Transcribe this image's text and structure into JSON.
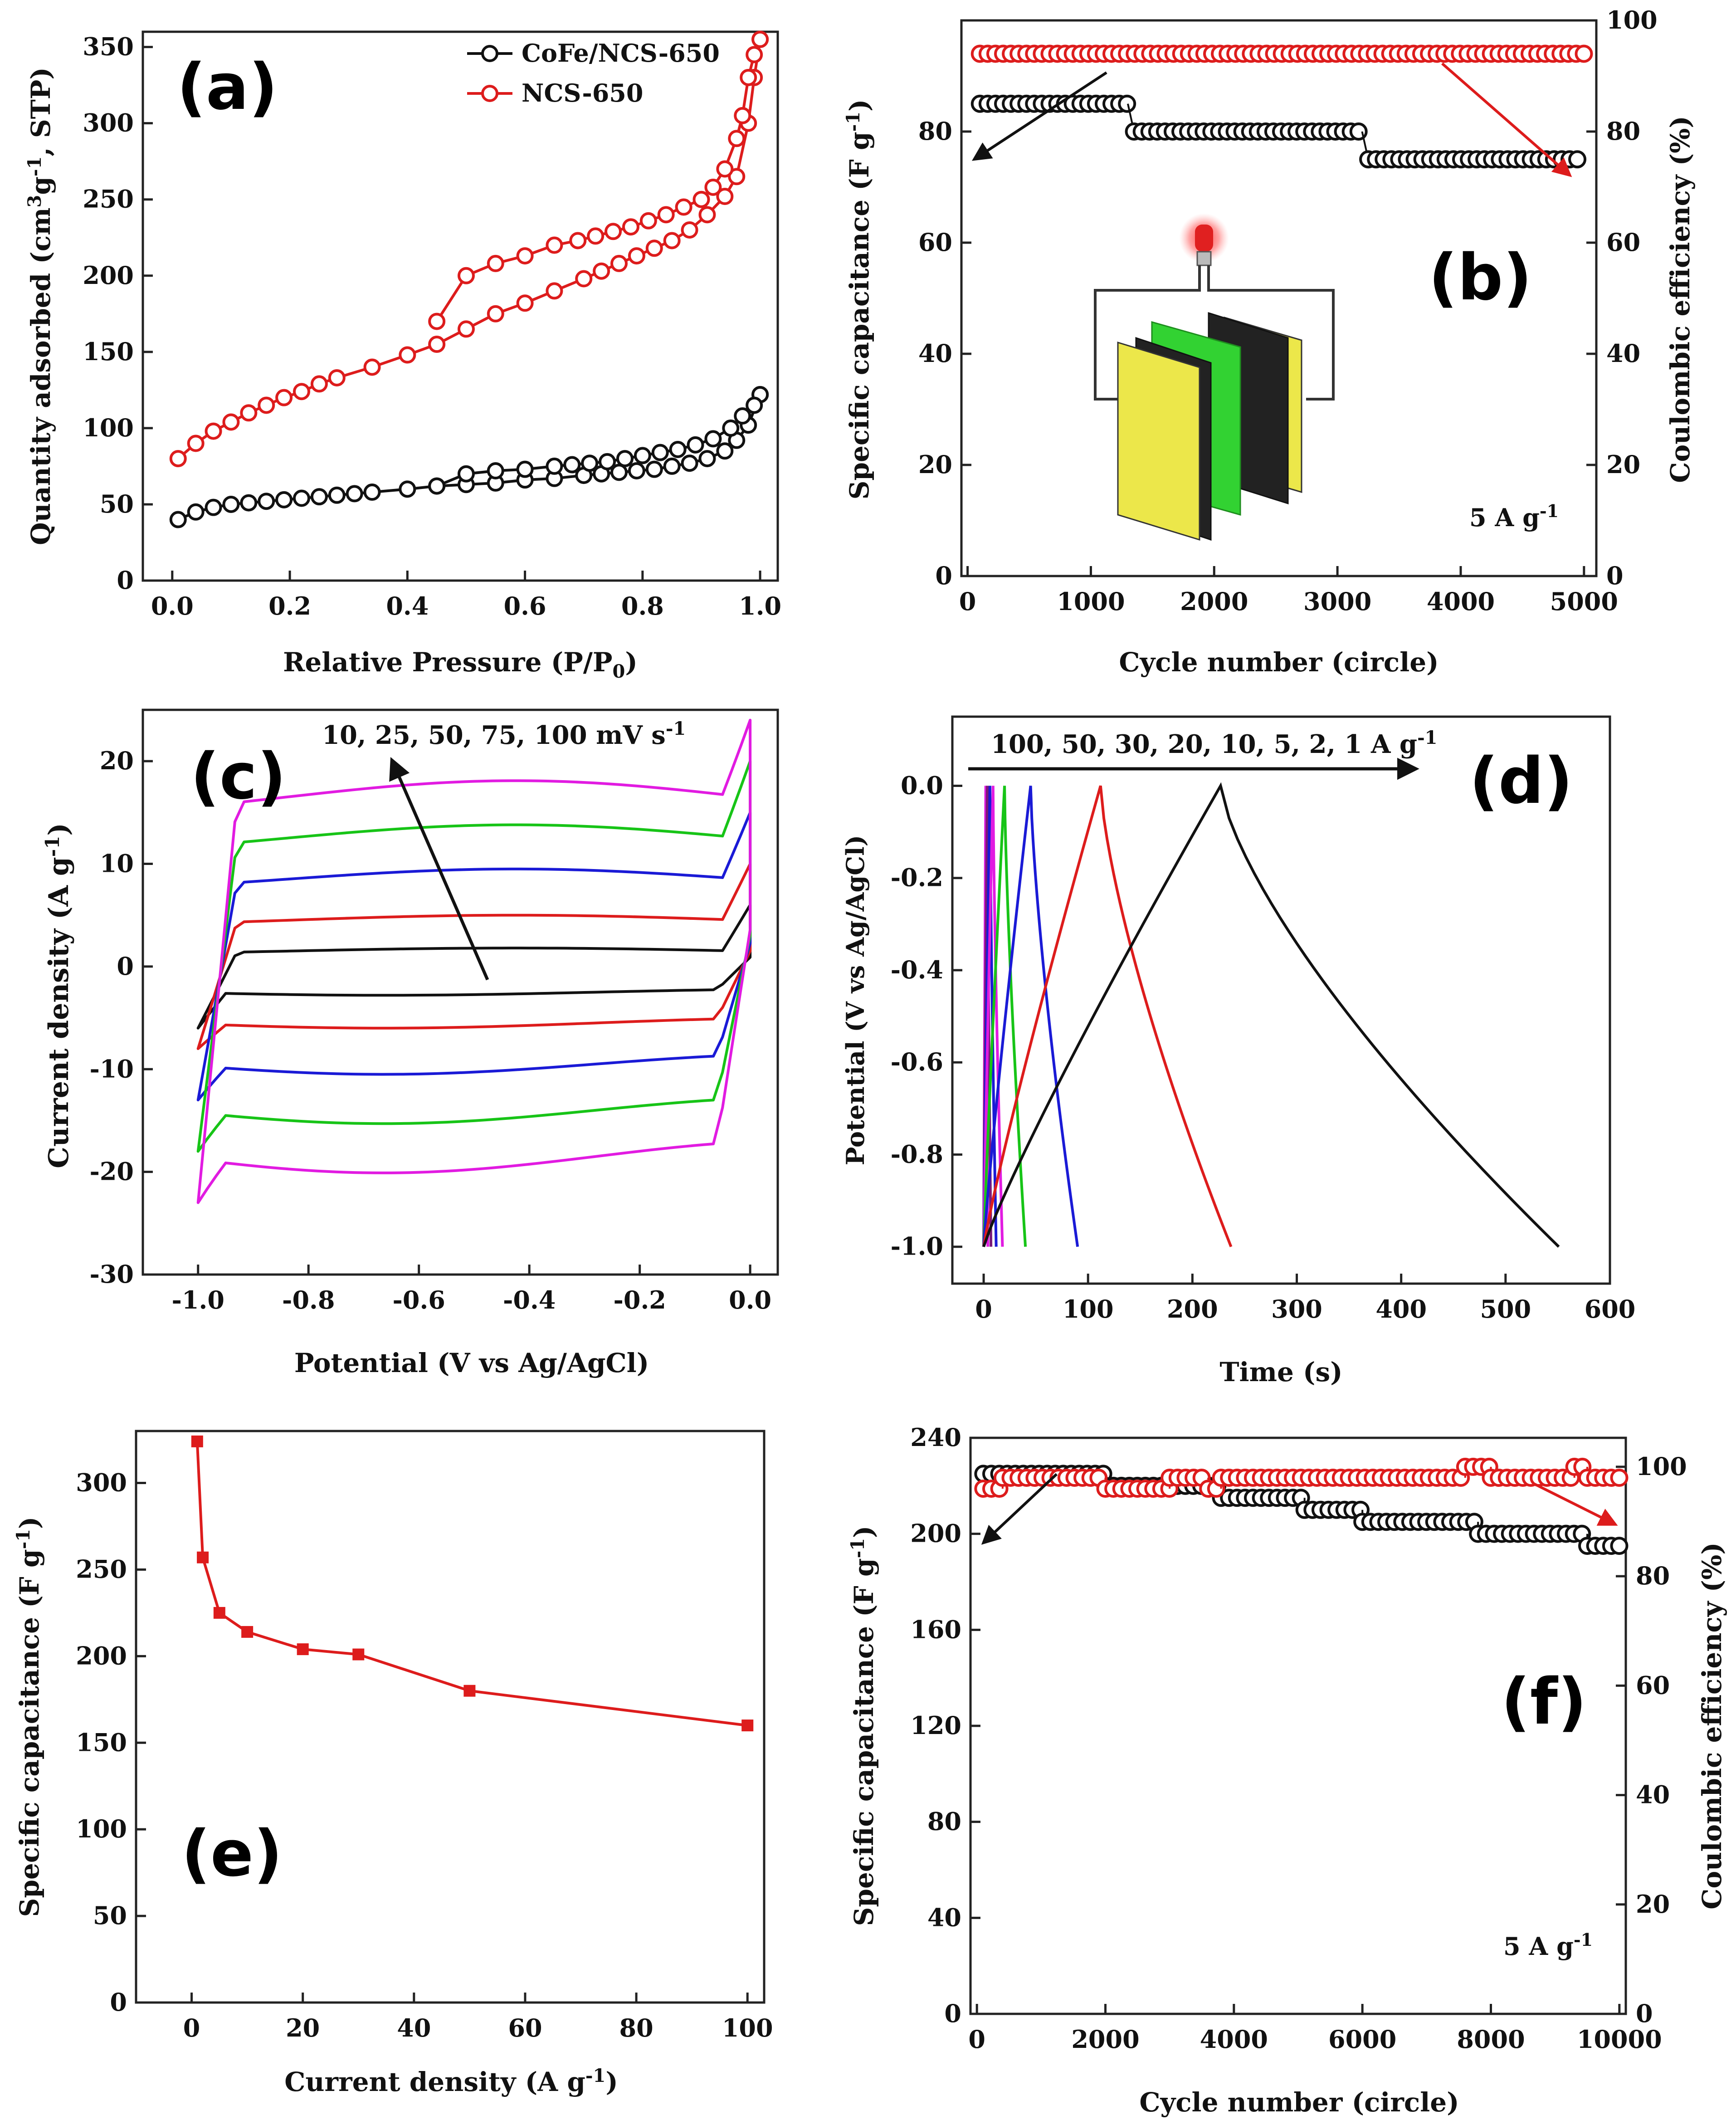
{
  "figure": {
    "panels": [
      "(a)",
      "(b)",
      "(c)",
      "(d)",
      "(e)",
      "(f)"
    ]
  },
  "chart_data": [
    {
      "id": "a",
      "letter": "(a)",
      "type": "line",
      "title": "",
      "xlabel": "Relative Pressure (P/P0)",
      "ylabel": "Quantity adsorbed (cm3g-1, STP)",
      "xlim": [
        -0.05,
        1.03
      ],
      "ylim": [
        0,
        360
      ],
      "xticks": [
        0.0,
        0.2,
        0.4,
        0.6,
        0.8,
        1.0
      ],
      "xtick_labels": [
        "0.0",
        "0.2",
        "0.4",
        "0.6",
        "0.8",
        "1.0"
      ],
      "yticks": [
        0,
        50,
        100,
        150,
        200,
        250,
        300,
        350
      ],
      "ytick_labels": [
        "0",
        "50",
        "100",
        "150",
        "200",
        "250",
        "300",
        "350"
      ],
      "legend": [
        {
          "name": "CoFe/NCS-650",
          "color": "#111111"
        },
        {
          "name": "NCS-650",
          "color": "#dd1c1c"
        }
      ],
      "series": [
        {
          "name": "CoFe/NCS-650 adsorption",
          "color": "#111111",
          "marker": "circle",
          "x": [
            0.01,
            0.04,
            0.07,
            0.1,
            0.13,
            0.16,
            0.19,
            0.22,
            0.25,
            0.28,
            0.31,
            0.34,
            0.4,
            0.45,
            0.5,
            0.55,
            0.6,
            0.65,
            0.7,
            0.73,
            0.76,
            0.79,
            0.82,
            0.85,
            0.88,
            0.91,
            0.94,
            0.96,
            0.98,
            1.0
          ],
          "y": [
            40,
            45,
            48,
            50,
            51,
            52,
            53,
            54,
            55,
            56,
            57,
            58,
            60,
            62,
            63,
            64,
            66,
            67,
            69,
            70,
            71,
            72,
            73,
            75,
            77,
            80,
            85,
            92,
            102,
            122
          ]
        },
        {
          "name": "CoFe/NCS-650 desorption",
          "color": "#111111",
          "marker": "circle",
          "x": [
            1.0,
            0.99,
            0.97,
            0.95,
            0.92,
            0.89,
            0.86,
            0.83,
            0.8,
            0.77,
            0.74,
            0.71,
            0.68,
            0.65,
            0.6,
            0.55,
            0.5,
            0.45
          ],
          "y": [
            122,
            115,
            108,
            100,
            93,
            89,
            86,
            84,
            82,
            80,
            78,
            77,
            76,
            75,
            73,
            72,
            70,
            62
          ]
        },
        {
          "name": "NCS-650 adsorption",
          "color": "#dd1c1c",
          "marker": "circle",
          "x": [
            0.01,
            0.04,
            0.07,
            0.1,
            0.13,
            0.16,
            0.19,
            0.22,
            0.25,
            0.28,
            0.34,
            0.4,
            0.45,
            0.5,
            0.55,
            0.6,
            0.65,
            0.7,
            0.73,
            0.76,
            0.79,
            0.82,
            0.85,
            0.88,
            0.91,
            0.94,
            0.96,
            0.98,
            0.99,
            1.0
          ],
          "y": [
            80,
            90,
            98,
            104,
            110,
            115,
            120,
            124,
            129,
            133,
            140,
            148,
            155,
            165,
            175,
            182,
            190,
            198,
            203,
            208,
            213,
            218,
            223,
            230,
            240,
            252,
            265,
            300,
            330,
            355
          ]
        },
        {
          "name": "NCS-650 desorption",
          "color": "#dd1c1c",
          "marker": "circle",
          "x": [
            1.0,
            0.99,
            0.98,
            0.97,
            0.96,
            0.94,
            0.92,
            0.9,
            0.87,
            0.84,
            0.81,
            0.78,
            0.75,
            0.72,
            0.69,
            0.65,
            0.6,
            0.55,
            0.5,
            0.45
          ],
          "y": [
            355,
            345,
            330,
            305,
            290,
            270,
            258,
            250,
            245,
            240,
            236,
            232,
            229,
            226,
            223,
            220,
            213,
            208,
            200,
            170
          ]
        }
      ]
    },
    {
      "id": "b",
      "letter": "(b)",
      "type": "scatter",
      "title": "",
      "xlabel": "Cycle number (circle)",
      "ylabel": "Specific capacitance (F g-1)",
      "ylabel2": "Coulombic efficiency (%)",
      "xlim": [
        -50,
        5100
      ],
      "ylim": [
        0,
        100
      ],
      "ylim2": [
        0,
        100
      ],
      "xticks": [
        0,
        1000,
        2000,
        3000,
        4000,
        5000
      ],
      "xtick_labels": [
        "0",
        "1000",
        "2000",
        "3000",
        "4000",
        "5000"
      ],
      "yticks": [
        0,
        20,
        40,
        60,
        80
      ],
      "ytick_labels": [
        "0",
        "20",
        "40",
        "60",
        "80"
      ],
      "yticks2": [
        0,
        20,
        40,
        60,
        80,
        100
      ],
      "ytick2_labels": [
        "0",
        "20",
        "40",
        "60",
        "80",
        "100"
      ],
      "annotation": "5 A g-1",
      "series": [
        {
          "name": "Specific capacitance",
          "color": "#111111",
          "axis": "left",
          "segments": [
            [
              100,
              1300,
              85
            ],
            [
              1350,
              3200,
              80
            ],
            [
              3250,
              5000,
              75
            ]
          ]
        },
        {
          "name": "Coulombic efficiency",
          "color": "#dd1c1c",
          "axis": "right",
          "segments": [
            [
              100,
              5000,
              94
            ]
          ]
        }
      ]
    },
    {
      "id": "c",
      "letter": "(c)",
      "type": "line",
      "title": "",
      "xlabel": "Potential (V vs Ag/AgCl)",
      "ylabel": "Current density (A g-1)",
      "xlim": [
        -1.1,
        0.05
      ],
      "ylim": [
        -30,
        25
      ],
      "xticks": [
        -1.0,
        -0.8,
        -0.6,
        -0.4,
        -0.2,
        0.0
      ],
      "xtick_labels": [
        "-1.0",
        "-0.8",
        "-0.6",
        "-0.4",
        "-0.2",
        "0.0"
      ],
      "yticks": [
        -30,
        -20,
        -10,
        0,
        10,
        20
      ],
      "ytick_labels": [
        "-30",
        "-20",
        "-10",
        "0",
        "10",
        "20"
      ],
      "annotation": "10, 25, 50, 75, 100 mV s-1",
      "series": [
        {
          "name": "10 mV s-1",
          "color": "#111111",
          "upper": 1.5,
          "lower": -2.5,
          "bump": 0.3,
          "ends": [
            -6,
            6
          ]
        },
        {
          "name": "25 mV s-1",
          "color": "#dd1c1c",
          "upper": 4.5,
          "lower": -5.5,
          "bump": 0.5,
          "ends": [
            -8,
            10
          ]
        },
        {
          "name": "50 mV s-1",
          "color": "#1a1ad6",
          "upper": 8.5,
          "lower": -9.5,
          "bump": 1.0,
          "ends": [
            -13,
            15
          ]
        },
        {
          "name": "75 mV s-1",
          "color": "#17c417",
          "upper": 12.5,
          "lower": -14,
          "bump": 1.3,
          "ends": [
            -18,
            20
          ]
        },
        {
          "name": "100 mV s-1",
          "color": "#e11be1",
          "upper": 16.5,
          "lower": -18.5,
          "bump": 1.6,
          "ends": [
            -23,
            24
          ]
        }
      ]
    },
    {
      "id": "d",
      "letter": "(d)",
      "type": "line",
      "title": "",
      "xlabel": "Time (s)",
      "ylabel": "Potential (V vs Ag/AgCl)",
      "xlim": [
        -30,
        600
      ],
      "ylim": [
        -1.08,
        0.15
      ],
      "xticks": [
        0,
        100,
        200,
        300,
        400,
        500,
        600
      ],
      "xtick_labels": [
        "0",
        "100",
        "200",
        "300",
        "400",
        "500",
        "600"
      ],
      "yticks": [
        -1.0,
        -0.8,
        -0.6,
        -0.4,
        -0.2,
        0.0
      ],
      "ytick_labels": [
        "-1.0",
        "-0.8",
        "-0.6",
        "-0.4",
        "-0.2",
        "0.0"
      ],
      "annotation": "100, 50, 30, 20, 10, 5, 2, 1 A g-1",
      "series": [
        {
          "name": "100 A g-1",
          "color": "#e11be1",
          "charge_end": 2,
          "discharge_end": 4
        },
        {
          "name": "50 A g-1",
          "color": "#7a1a7a",
          "charge_end": 3.5,
          "discharge_end": 7
        },
        {
          "name": "30 A g-1",
          "color": "#1a1ad6",
          "charge_end": 6,
          "discharge_end": 12
        },
        {
          "name": "20 A g-1",
          "color": "#e11be1",
          "charge_end": 9,
          "discharge_end": 18
        },
        {
          "name": "10 A g-1",
          "color": "#17c417",
          "charge_end": 20,
          "discharge_end": 40
        },
        {
          "name": "5 A g-1",
          "color": "#1a1ad6",
          "charge_end": 45,
          "discharge_end": 90
        },
        {
          "name": "2 A g-1",
          "color": "#dd1c1c",
          "charge_end": 112,
          "discharge_end": 237
        },
        {
          "name": "1 A g-1",
          "color": "#111111",
          "charge_end": 227,
          "discharge_end": 551
        }
      ]
    },
    {
      "id": "e",
      "letter": "(e)",
      "type": "line",
      "title": "",
      "xlabel": "Current density (A g-1)",
      "ylabel": "Specific capacitance (F g-1)",
      "xlim": [
        -10,
        103
      ],
      "ylim": [
        0,
        330
      ],
      "xticks": [
        0,
        20,
        40,
        60,
        80,
        100
      ],
      "xtick_labels": [
        "0",
        "20",
        "40",
        "60",
        "80",
        "100"
      ],
      "yticks": [
        0,
        50,
        100,
        150,
        200,
        250,
        300
      ],
      "ytick_labels": [
        "0",
        "50",
        "100",
        "150",
        "200",
        "250",
        "300"
      ],
      "series": [
        {
          "name": "Specific capacitance",
          "color": "#dd1c1c",
          "marker": "square",
          "x": [
            1,
            2,
            5,
            10,
            20,
            30,
            50,
            100
          ],
          "y": [
            324,
            257,
            225,
            214,
            204,
            201,
            180,
            160
          ]
        }
      ]
    },
    {
      "id": "f",
      "letter": "(f)",
      "type": "scatter",
      "title": "",
      "xlabel": "Cycle number (circle)",
      "ylabel": "Specific capacitance (F g-1)",
      "ylabel2": "Coulombic efficiency (%)",
      "xlim": [
        -100,
        10100
      ],
      "ylim": [
        0,
        240
      ],
      "ylim2": [
        0,
        105.3
      ],
      "xticks": [
        0,
        2000,
        4000,
        6000,
        8000,
        10000
      ],
      "xtick_labels": [
        "0",
        "2000",
        "4000",
        "6000",
        "8000",
        "10000"
      ],
      "yticks": [
        0,
        40,
        80,
        120,
        160,
        200,
        240
      ],
      "ytick_labels": [
        "0",
        "40",
        "80",
        "120",
        "160",
        "200",
        "240"
      ],
      "yticks2": [
        0,
        20,
        40,
        60,
        80,
        100
      ],
      "ytick2_labels": [
        "0",
        "20",
        "40",
        "60",
        "80",
        "100"
      ],
      "annotation": "5 A g-1",
      "series": [
        {
          "name": "Specific capacitance",
          "color": "#111111",
          "axis": "left",
          "segments": [
            [
              100,
              2000,
              225
            ],
            [
              2000,
              3800,
              220
            ],
            [
              3800,
              5100,
              215
            ],
            [
              5100,
              6000,
              210
            ],
            [
              6000,
              7800,
              205
            ],
            [
              7800,
              9500,
              200
            ],
            [
              9500,
              10000,
              195
            ]
          ]
        },
        {
          "name": "Coulombic efficiency",
          "color": "#dd1c1c",
          "axis": "right",
          "segments": [
            [
              100,
              400,
              96
            ],
            [
              400,
              2000,
              98
            ],
            [
              2000,
              3000,
              96
            ],
            [
              3000,
              3600,
              98
            ],
            [
              3600,
              3800,
              96
            ],
            [
              3800,
              7600,
              98
            ],
            [
              7600,
              8000,
              100
            ],
            [
              8000,
              9300,
              98
            ],
            [
              9300,
              9500,
              100
            ],
            [
              9500,
              10000,
              98
            ]
          ]
        }
      ]
    }
  ]
}
